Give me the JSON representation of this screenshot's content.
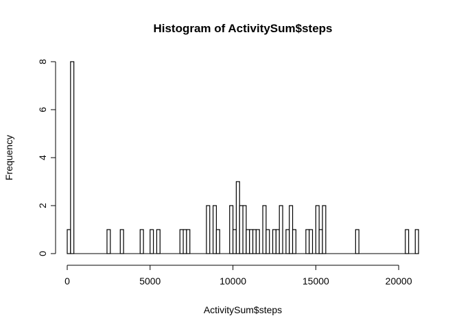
{
  "chart_data": {
    "type": "bar",
    "title": "Histogram of ActivitySum$steps",
    "xlabel": "ActivitySum$steps",
    "ylabel": "Frequency",
    "xlim": [
      0,
      21194
    ],
    "ylim": [
      0,
      8
    ],
    "bin_width": 200,
    "x_ticks": [
      0,
      5000,
      10000,
      15000,
      20000
    ],
    "y_ticks": [
      0,
      2,
      4,
      6,
      8
    ],
    "series": [
      {
        "name": "Frequency",
        "bins": [
          {
            "x": 0,
            "count": 1
          },
          {
            "x": 200,
            "count": 8
          },
          {
            "x": 2400,
            "count": 1
          },
          {
            "x": 3200,
            "count": 1
          },
          {
            "x": 4400,
            "count": 1
          },
          {
            "x": 5000,
            "count": 1
          },
          {
            "x": 5400,
            "count": 1
          },
          {
            "x": 6800,
            "count": 1
          },
          {
            "x": 7000,
            "count": 1
          },
          {
            "x": 7200,
            "count": 1
          },
          {
            "x": 8400,
            "count": 2
          },
          {
            "x": 8800,
            "count": 2
          },
          {
            "x": 9000,
            "count": 1
          },
          {
            "x": 9800,
            "count": 2
          },
          {
            "x": 10000,
            "count": 1
          },
          {
            "x": 10200,
            "count": 3
          },
          {
            "x": 10400,
            "count": 2
          },
          {
            "x": 10600,
            "count": 2
          },
          {
            "x": 10800,
            "count": 1
          },
          {
            "x": 11000,
            "count": 1
          },
          {
            "x": 11200,
            "count": 1
          },
          {
            "x": 11400,
            "count": 1
          },
          {
            "x": 11800,
            "count": 2
          },
          {
            "x": 12000,
            "count": 1
          },
          {
            "x": 12400,
            "count": 1
          },
          {
            "x": 12600,
            "count": 1
          },
          {
            "x": 12800,
            "count": 2
          },
          {
            "x": 13200,
            "count": 1
          },
          {
            "x": 13400,
            "count": 2
          },
          {
            "x": 13600,
            "count": 1
          },
          {
            "x": 14400,
            "count": 1
          },
          {
            "x": 14600,
            "count": 1
          },
          {
            "x": 15000,
            "count": 2
          },
          {
            "x": 15200,
            "count": 1
          },
          {
            "x": 15400,
            "count": 2
          },
          {
            "x": 17400,
            "count": 1
          },
          {
            "x": 20400,
            "count": 1
          },
          {
            "x": 21000,
            "count": 1
          }
        ]
      }
    ]
  }
}
